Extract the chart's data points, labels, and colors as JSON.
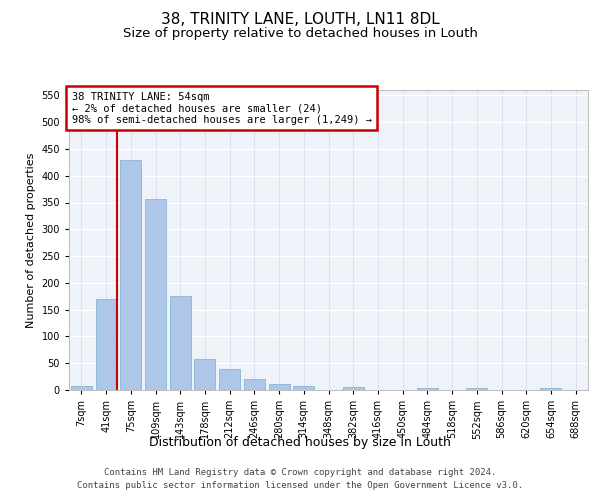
{
  "title": "38, TRINITY LANE, LOUTH, LN11 8DL",
  "subtitle": "Size of property relative to detached houses in Louth",
  "xlabel": "Distribution of detached houses by size in Louth",
  "ylabel": "Number of detached properties",
  "categories": [
    "7sqm",
    "41sqm",
    "75sqm",
    "109sqm",
    "143sqm",
    "178sqm",
    "212sqm",
    "246sqm",
    "280sqm",
    "314sqm",
    "348sqm",
    "382sqm",
    "416sqm",
    "450sqm",
    "484sqm",
    "518sqm",
    "552sqm",
    "586sqm",
    "620sqm",
    "654sqm",
    "688sqm"
  ],
  "values": [
    8,
    170,
    430,
    357,
    175,
    57,
    40,
    20,
    12,
    8,
    0,
    5,
    0,
    0,
    3,
    0,
    4,
    0,
    0,
    4,
    0
  ],
  "bar_color": "#aec6e8",
  "bar_edge_color": "#7aafd4",
  "highlight_color": "#cc0000",
  "annotation_text": "38 TRINITY LANE: 54sqm\n← 2% of detached houses are smaller (24)\n98% of semi-detached houses are larger (1,249) →",
  "annotation_box_color": "#cc0000",
  "ylim": [
    0,
    560
  ],
  "yticks": [
    0,
    50,
    100,
    150,
    200,
    250,
    300,
    350,
    400,
    450,
    500,
    550
  ],
  "background_color": "#eef2f9",
  "footer_line1": "Contains HM Land Registry data © Crown copyright and database right 2024.",
  "footer_line2": "Contains public sector information licensed under the Open Government Licence v3.0.",
  "title_fontsize": 11,
  "subtitle_fontsize": 9.5,
  "xlabel_fontsize": 9,
  "ylabel_fontsize": 8,
  "tick_fontsize": 7,
  "footer_fontsize": 6.5,
  "annot_fontsize": 7.5
}
